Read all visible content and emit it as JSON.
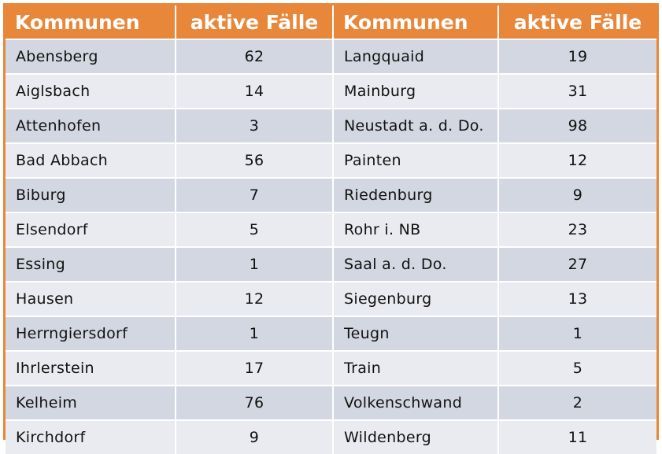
{
  "chart_data": {
    "type": "table",
    "columns": [
      "Kommunen",
      "aktive Fälle",
      "Kommunen",
      "aktive Fälle"
    ],
    "rows": [
      [
        "Abensberg",
        "62",
        "Langquaid",
        "19"
      ],
      [
        "Aiglsbach",
        "14",
        "Mainburg",
        "31"
      ],
      [
        "Attenhofen",
        "3",
        "Neustadt a. d. Do.",
        "98"
      ],
      [
        "Bad Abbach",
        "56",
        "Painten",
        "12"
      ],
      [
        "Biburg",
        "7",
        "Riedenburg",
        "9"
      ],
      [
        "Elsendorf",
        "5",
        "Rohr i. NB",
        "23"
      ],
      [
        "Essing",
        "1",
        "Saal a. d. Do.",
        "27"
      ],
      [
        "Hausen",
        "12",
        "Siegenburg",
        "13"
      ],
      [
        "Herrngiersdorf",
        "1",
        "Teugn",
        "1"
      ],
      [
        "Ihrlerstein",
        "17",
        "Train",
        "5"
      ],
      [
        "Kelheim",
        "76",
        "Volkenschwand",
        "2"
      ],
      [
        "Kirchdorf",
        "9",
        "Wildenberg",
        "11"
      ]
    ]
  },
  "colors": {
    "header_bg": "#E8873A",
    "header_text": "#FFFFFF",
    "row_odd": "#D3D7E1",
    "row_even": "#EAEBF0"
  }
}
